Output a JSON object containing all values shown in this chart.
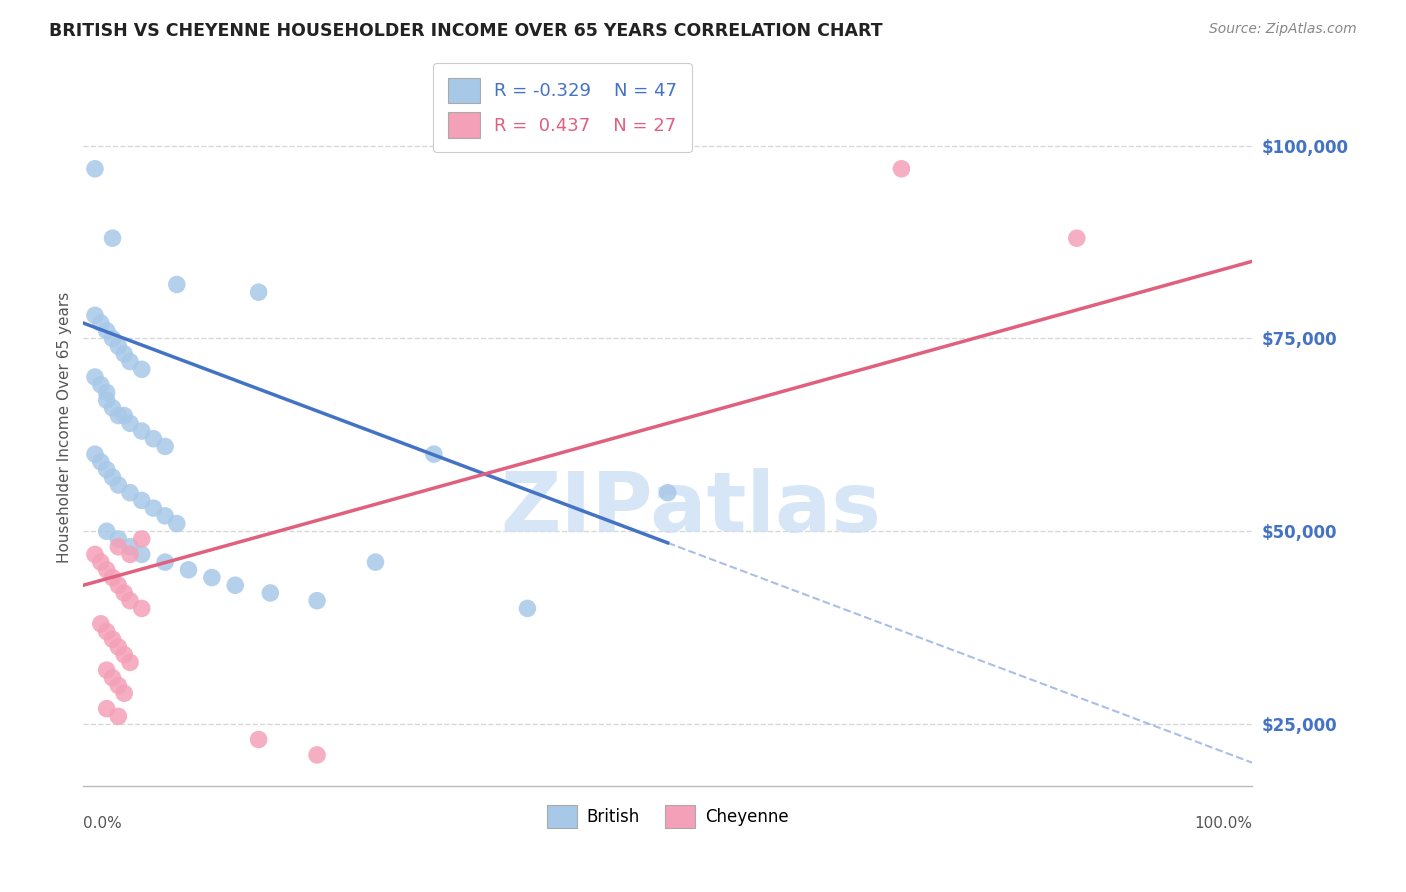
{
  "title": "BRITISH VS CHEYENNE HOUSEHOLDER INCOME OVER 65 YEARS CORRELATION CHART",
  "source": "Source: ZipAtlas.com",
  "ylabel": "Householder Income Over 65 years",
  "xlim": [
    0.0,
    100.0
  ],
  "ylim": [
    17000,
    110000
  ],
  "yticks": [
    25000,
    50000,
    75000,
    100000
  ],
  "ytick_labels": [
    "$25,000",
    "$50,000",
    "$75,000",
    "$100,000"
  ],
  "british_color": "#a8c8e8",
  "cheyenne_color": "#f4a0b8",
  "british_line_color": "#4472c4",
  "cheyenne_line_color": "#e06080",
  "british_R": -0.329,
  "british_N": 47,
  "cheyenne_R": 0.437,
  "cheyenne_N": 27,
  "watermark": "ZIPatlas",
  "watermark_color": "#cce0f5",
  "background_color": "#ffffff",
  "grid_color": "#d8d8d8",
  "british_line_x0": 0,
  "british_line_y0": 77000,
  "british_line_x1": 100,
  "british_line_y1": 20000,
  "british_solid_end": 50,
  "cheyenne_line_x0": 0,
  "cheyenne_line_y0": 43000,
  "cheyenne_line_x1": 100,
  "cheyenne_line_y1": 85000,
  "british_x": [
    1.0,
    2.5,
    8.0,
    15.0,
    1.0,
    1.5,
    2.0,
    2.5,
    3.0,
    3.5,
    4.0,
    5.0,
    1.0,
    1.5,
    2.0,
    2.0,
    2.5,
    3.0,
    3.5,
    4.0,
    5.0,
    6.0,
    7.0,
    1.0,
    1.5,
    2.0,
    2.5,
    3.0,
    4.0,
    5.0,
    6.0,
    7.0,
    8.0,
    2.0,
    3.0,
    4.0,
    5.0,
    7.0,
    9.0,
    11.0,
    13.0,
    16.0,
    20.0,
    30.0,
    50.0,
    25.0,
    38.0
  ],
  "british_y": [
    97000,
    88000,
    82000,
    81000,
    78000,
    77000,
    76000,
    75000,
    74000,
    73000,
    72000,
    71000,
    70000,
    69000,
    68000,
    67000,
    66000,
    65000,
    65000,
    64000,
    63000,
    62000,
    61000,
    60000,
    59000,
    58000,
    57000,
    56000,
    55000,
    54000,
    53000,
    52000,
    51000,
    50000,
    49000,
    48000,
    47000,
    46000,
    45000,
    44000,
    43000,
    42000,
    41000,
    60000,
    55000,
    46000,
    40000
  ],
  "cheyenne_x": [
    1.0,
    1.5,
    2.0,
    2.5,
    3.0,
    3.5,
    4.0,
    5.0,
    1.5,
    2.0,
    2.5,
    3.0,
    3.5,
    4.0,
    2.0,
    2.5,
    3.0,
    3.5,
    3.0,
    4.0,
    5.0,
    2.0,
    3.0,
    15.0,
    20.0,
    70.0,
    85.0
  ],
  "cheyenne_y": [
    47000,
    46000,
    45000,
    44000,
    43000,
    42000,
    41000,
    40000,
    38000,
    37000,
    36000,
    35000,
    34000,
    33000,
    32000,
    31000,
    30000,
    29000,
    48000,
    47000,
    49000,
    27000,
    26000,
    23000,
    21000,
    97000,
    88000
  ]
}
